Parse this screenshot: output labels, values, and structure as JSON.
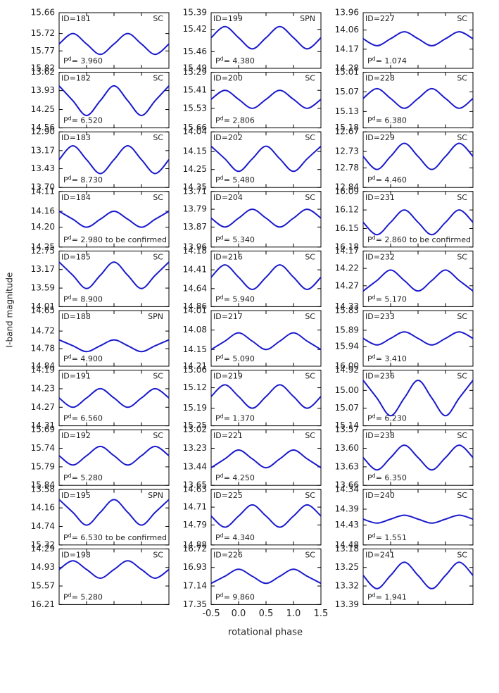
{
  "shared_axes": {
    "xlabel": "rotational phase",
    "ylabel": "I-band magnitude",
    "xlim": [
      -0.5,
      1.5
    ],
    "xticks": [
      -0.5,
      {
        "value": 0,
        "label": "0.0"
      },
      0.5,
      {
        "value": 1,
        "label": "1.0"
      },
      1.5
    ],
    "x": [
      -0.5,
      -0.25,
      0,
      0.25,
      0.5,
      0.75,
      1,
      1.25,
      1.5
    ],
    "period_symbol": "P",
    "period_superscript": "d"
  },
  "chart_data": [
    {
      "type": "line",
      "title": "ID=181",
      "annotation": "SC",
      "period_label": "= 3.960",
      "ylim": [
        15.66,
        15.82
      ],
      "yticks": [
        15.66,
        15.72,
        15.77,
        15.82
      ],
      "series": [
        {
          "color": "#1a1acc",
          "values": [
            15.75,
            15.72,
            15.75,
            15.78,
            15.75,
            15.72,
            15.75,
            15.78,
            15.75
          ]
        }
      ]
    },
    {
      "type": "line",
      "title": "ID=182",
      "annotation": "SC",
      "period_label": "= 6.520",
      "ylim": [
        13.62,
        14.56
      ],
      "yticks": [
        13.62,
        13.93,
        14.25,
        14.56
      ],
      "series": [
        {
          "color": "#1a1acc",
          "values": [
            13.85,
            14.1,
            14.35,
            14.1,
            13.85,
            14.1,
            14.35,
            14.1,
            13.85
          ]
        }
      ]
    },
    {
      "type": "line",
      "title": "ID=183",
      "annotation": "SC",
      "period_label": "= 8.730",
      "ylim": [
        12.9,
        13.7
      ],
      "yticks": [
        {
          "value": 12.9,
          "label": "12.90"
        },
        13.17,
        13.43,
        {
          "value": 13.7,
          "label": "13.70"
        }
      ],
      "series": [
        {
          "color": "#1a1acc",
          "values": [
            13.3,
            13.1,
            13.3,
            13.5,
            13.3,
            13.1,
            13.3,
            13.5,
            13.3
          ]
        }
      ]
    },
    {
      "type": "line",
      "title": "ID=184",
      "annotation": "SC",
      "period_label": "= 2.980",
      "note": "to be confirmed",
      "ylim": [
        14.11,
        14.25
      ],
      "yticks": [
        14.11,
        14.16,
        {
          "value": 14.2,
          "label": "14.20"
        },
        14.25
      ],
      "series": [
        {
          "color": "#1a1acc",
          "values": [
            14.16,
            14.18,
            14.2,
            14.18,
            14.16,
            14.18,
            14.2,
            14.18,
            14.16
          ]
        }
      ]
    },
    {
      "type": "line",
      "title": "ID=185",
      "annotation": "SC",
      "period_label": "= 8.900",
      "ylim": [
        12.75,
        14.01
      ],
      "yticks": [
        12.75,
        13.17,
        13.59,
        14.01
      ],
      "series": [
        {
          "color": "#1a1acc",
          "values": [
            13.0,
            13.3,
            13.6,
            13.3,
            13.0,
            13.3,
            13.6,
            13.3,
            13.0
          ]
        }
      ]
    },
    {
      "type": "line",
      "title": "ID=188",
      "annotation": "SPN",
      "period_label": "= 4.900",
      "ylim": [
        14.65,
        14.84
      ],
      "yticks": [
        14.65,
        14.72,
        14.78,
        14.84
      ],
      "series": [
        {
          "color": "#1a1acc",
          "values": [
            14.75,
            14.77,
            14.79,
            14.77,
            14.75,
            14.77,
            14.79,
            14.77,
            14.75
          ]
        }
      ]
    },
    {
      "type": "line",
      "title": "ID=191",
      "annotation": "SC",
      "period_label": "= 6.560",
      "ylim": [
        14.19,
        14.31
      ],
      "yticks": [
        14.19,
        14.23,
        14.27,
        14.31
      ],
      "series": [
        {
          "color": "#1a1acc",
          "values": [
            14.25,
            14.27,
            14.25,
            14.23,
            14.25,
            14.27,
            14.25,
            14.23,
            14.25
          ]
        }
      ]
    },
    {
      "type": "line",
      "title": "ID=192",
      "annotation": "SC",
      "period_label": "= 5.280",
      "ylim": [
        15.69,
        15.84
      ],
      "yticks": [
        15.69,
        15.74,
        15.79,
        15.84
      ],
      "series": [
        {
          "color": "#1a1acc",
          "values": [
            15.76,
            15.785,
            15.76,
            15.735,
            15.76,
            15.785,
            15.76,
            15.735,
            15.76
          ]
        }
      ]
    },
    {
      "type": "line",
      "title": "ID=195",
      "annotation": "SPN",
      "period_label": "= 6.530",
      "note": "to be confirmed",
      "ylim": [
        13.58,
        15.32
      ],
      "yticks": [
        13.58,
        14.16,
        14.74,
        15.32
      ],
      "series": [
        {
          "color": "#1a1acc",
          "values": [
            13.9,
            14.3,
            14.7,
            14.3,
            13.9,
            14.3,
            14.7,
            14.3,
            13.9
          ]
        }
      ]
    },
    {
      "type": "line",
      "title": "ID=198",
      "annotation": "SC",
      "period_label": "= 5.280",
      "ylim": [
        14.29,
        16.21
      ],
      "yticks": [
        14.29,
        14.93,
        15.57,
        16.21
      ],
      "series": [
        {
          "color": "#1a1acc",
          "values": [
            15.0,
            14.7,
            15.0,
            15.3,
            15.0,
            14.7,
            15.0,
            15.3,
            15.0
          ]
        }
      ]
    },
    {
      "type": "line",
      "title": "ID=199",
      "annotation": "SPN",
      "period_label": "= 4.380",
      "ylim": [
        15.39,
        15.49
      ],
      "yticks": [
        15.39,
        15.42,
        15.46,
        15.49
      ],
      "series": [
        {
          "color": "#1a1acc",
          "values": [
            15.435,
            15.415,
            15.435,
            15.455,
            15.435,
            15.415,
            15.435,
            15.455,
            15.435
          ]
        }
      ]
    },
    {
      "type": "line",
      "title": "ID=200",
      "annotation": "SC",
      "period_label": "= 2.806",
      "ylim": [
        15.29,
        15.66
      ],
      "yticks": [
        15.29,
        15.41,
        15.53,
        15.66
      ],
      "series": [
        {
          "color": "#1a1acc",
          "values": [
            15.47,
            15.41,
            15.47,
            15.53,
            15.47,
            15.41,
            15.47,
            15.53,
            15.47
          ]
        }
      ]
    },
    {
      "type": "line",
      "title": "ID=202",
      "annotation": "SC",
      "period_label": "= 5.480",
      "ylim": [
        14.04,
        14.35
      ],
      "yticks": [
        14.04,
        14.15,
        14.25,
        14.35
      ],
      "series": [
        {
          "color": "#1a1acc",
          "values": [
            14.12,
            14.19,
            14.26,
            14.19,
            14.12,
            14.19,
            14.26,
            14.19,
            14.12
          ]
        }
      ]
    },
    {
      "type": "line",
      "title": "ID=204",
      "annotation": "SC",
      "period_label": "= 5.340",
      "ylim": [
        13.71,
        13.96
      ],
      "yticks": [
        13.71,
        13.79,
        13.87,
        13.96
      ],
      "series": [
        {
          "color": "#1a1acc",
          "values": [
            13.83,
            13.87,
            13.83,
            13.79,
            13.83,
            13.87,
            13.83,
            13.79,
            13.83
          ]
        }
      ]
    },
    {
      "type": "line",
      "title": "ID=216",
      "annotation": "SC",
      "period_label": "= 5.940",
      "ylim": [
        14.18,
        14.86
      ],
      "yticks": [
        14.18,
        14.41,
        14.64,
        14.86
      ],
      "series": [
        {
          "color": "#1a1acc",
          "values": [
            14.5,
            14.35,
            14.5,
            14.65,
            14.5,
            14.35,
            14.5,
            14.65,
            14.5
          ]
        }
      ]
    },
    {
      "type": "line",
      "title": "ID=217",
      "annotation": "SC",
      "period_label": "= 5.090",
      "ylim": [
        14.01,
        14.21
      ],
      "yticks": [
        14.01,
        14.08,
        14.15,
        14.21
      ],
      "series": [
        {
          "color": "#1a1acc",
          "values": [
            14.15,
            14.12,
            14.09,
            14.12,
            14.15,
            14.12,
            14.09,
            14.12,
            14.15
          ]
        }
      ]
    },
    {
      "type": "line",
      "title": "ID=219",
      "annotation": "SC",
      "period_label": "= 1.370",
      "ylim": [
        15.06,
        15.25
      ],
      "yticks": [
        15.06,
        15.12,
        15.19,
        15.25
      ],
      "series": [
        {
          "color": "#1a1acc",
          "values": [
            15.15,
            15.11,
            15.15,
            15.19,
            15.15,
            15.11,
            15.15,
            15.19,
            15.15
          ]
        }
      ]
    },
    {
      "type": "line",
      "title": "ID=221",
      "annotation": "SC",
      "period_label": "= 4.250",
      "ylim": [
        13.02,
        13.65
      ],
      "yticks": [
        13.02,
        13.23,
        13.44,
        13.65
      ],
      "series": [
        {
          "color": "#1a1acc",
          "values": [
            13.45,
            13.35,
            13.25,
            13.35,
            13.45,
            13.35,
            13.25,
            13.35,
            13.45
          ]
        }
      ]
    },
    {
      "type": "line",
      "title": "ID=225",
      "annotation": "SC",
      "period_label": "= 4.340",
      "ylim": [
        14.63,
        14.88
      ],
      "yticks": [
        14.63,
        14.71,
        14.79,
        14.88
      ],
      "series": [
        {
          "color": "#1a1acc",
          "values": [
            14.75,
            14.8,
            14.75,
            14.7,
            14.75,
            14.8,
            14.75,
            14.7,
            14.75
          ]
        }
      ]
    },
    {
      "type": "line",
      "title": "ID=226",
      "annotation": "SC",
      "period_label": "= 9.860",
      "ylim": [
        16.72,
        17.35
      ],
      "yticks": [
        16.72,
        16.93,
        17.14,
        17.35
      ],
      "series": [
        {
          "color": "#1a1acc",
          "values": [
            17.11,
            17.03,
            16.95,
            17.03,
            17.11,
            17.03,
            16.95,
            17.03,
            17.11
          ]
        }
      ]
    },
    {
      "type": "line",
      "title": "ID=227",
      "annotation": "SC",
      "period_label": "= 1.074",
      "ylim": [
        13.96,
        14.28
      ],
      "yticks": [
        13.96,
        14.06,
        14.17,
        14.28
      ],
      "series": [
        {
          "color": "#1a1acc",
          "values": [
            14.11,
            14.15,
            14.11,
            14.07,
            14.11,
            14.15,
            14.11,
            14.07,
            14.11
          ]
        }
      ]
    },
    {
      "type": "line",
      "title": "ID=228",
      "annotation": "SC",
      "period_label": "= 6.380",
      "ylim": [
        15.01,
        15.18
      ],
      "yticks": [
        15.01,
        15.07,
        15.13,
        15.18
      ],
      "series": [
        {
          "color": "#1a1acc",
          "values": [
            15.09,
            15.06,
            15.09,
            15.12,
            15.09,
            15.06,
            15.09,
            15.12,
            15.09
          ]
        }
      ]
    },
    {
      "type": "line",
      "title": "ID=229",
      "annotation": "SC",
      "period_label": "= 4.460",
      "ylim": [
        12.67,
        12.84
      ],
      "yticks": [
        12.67,
        12.73,
        12.78,
        12.84
      ],
      "series": [
        {
          "color": "#1a1acc",
          "values": [
            12.745,
            12.785,
            12.745,
            12.705,
            12.745,
            12.785,
            12.745,
            12.705,
            12.745
          ]
        }
      ]
    },
    {
      "type": "line",
      "title": "ID=231",
      "annotation": "SC",
      "period_label": "= 2.860",
      "note": "to be confirmed",
      "ylim": [
        16.09,
        16.18
      ],
      "yticks": [
        16.09,
        16.12,
        16.15,
        16.18
      ],
      "series": [
        {
          "color": "#1a1acc",
          "values": [
            16.14,
            16.16,
            16.14,
            16.12,
            16.14,
            16.16,
            16.14,
            16.12,
            16.14
          ]
        }
      ]
    },
    {
      "type": "line",
      "title": "ID=232",
      "annotation": "SC",
      "period_label": "= 5.170",
      "ylim": [
        14.17,
        14.33
      ],
      "yticks": [
        14.17,
        14.22,
        14.27,
        14.33
      ],
      "series": [
        {
          "color": "#1a1acc",
          "values": [
            14.285,
            14.255,
            14.225,
            14.255,
            14.285,
            14.255,
            14.225,
            14.255,
            14.285
          ]
        }
      ]
    },
    {
      "type": "line",
      "title": "ID=233",
      "annotation": "SC",
      "period_label": "= 3.410",
      "ylim": [
        15.83,
        16.0
      ],
      "yticks": [
        15.83,
        15.89,
        15.94,
        {
          "value": 16.0,
          "label": "16.00"
        }
      ],
      "series": [
        {
          "color": "#1a1acc",
          "values": [
            15.915,
            15.935,
            15.915,
            15.895,
            15.915,
            15.935,
            15.915,
            15.895,
            15.915
          ]
        }
      ]
    },
    {
      "type": "line",
      "title": "ID=236",
      "annotation": "SC",
      "period_label": "= 6.230",
      "ylim": [
        14.92,
        15.14
      ],
      "yticks": [
        14.92,
        {
          "value": 15.0,
          "label": "15.00"
        },
        15.07,
        15.14
      ],
      "series": [
        {
          "color": "#1a1acc",
          "values": [
            14.96,
            15.03,
            15.1,
            15.03,
            14.96,
            15.03,
            15.1,
            15.03,
            14.96
          ]
        }
      ]
    },
    {
      "type": "line",
      "title": "ID=238",
      "annotation": "SC",
      "period_label": "= 6.350",
      "ylim": [
        13.57,
        13.66
      ],
      "yticks": [
        13.57,
        {
          "value": 13.6,
          "label": "13.60"
        },
        13.63,
        13.66
      ],
      "series": [
        {
          "color": "#1a1acc",
          "values": [
            13.615,
            13.635,
            13.615,
            13.595,
            13.615,
            13.635,
            13.615,
            13.595,
            13.615
          ]
        }
      ]
    },
    {
      "type": "line",
      "title": "ID=240",
      "annotation": "SC",
      "period_label": "= 1.551",
      "ylim": [
        14.34,
        14.48
      ],
      "yticks": [
        14.34,
        14.39,
        14.43,
        14.48
      ],
      "series": [
        {
          "color": "#1a1acc",
          "values": [
            14.415,
            14.425,
            14.415,
            14.405,
            14.415,
            14.425,
            14.415,
            14.405,
            14.415
          ]
        }
      ]
    },
    {
      "type": "line",
      "title": "ID=241",
      "annotation": "SC",
      "period_label": "= 1.941",
      "ylim": [
        13.18,
        13.39
      ],
      "yticks": [
        13.18,
        13.25,
        13.32,
        13.39
      ],
      "series": [
        {
          "color": "#1a1acc",
          "values": [
            13.28,
            13.33,
            13.28,
            13.23,
            13.28,
            13.33,
            13.28,
            13.23,
            13.28
          ]
        }
      ]
    }
  ]
}
